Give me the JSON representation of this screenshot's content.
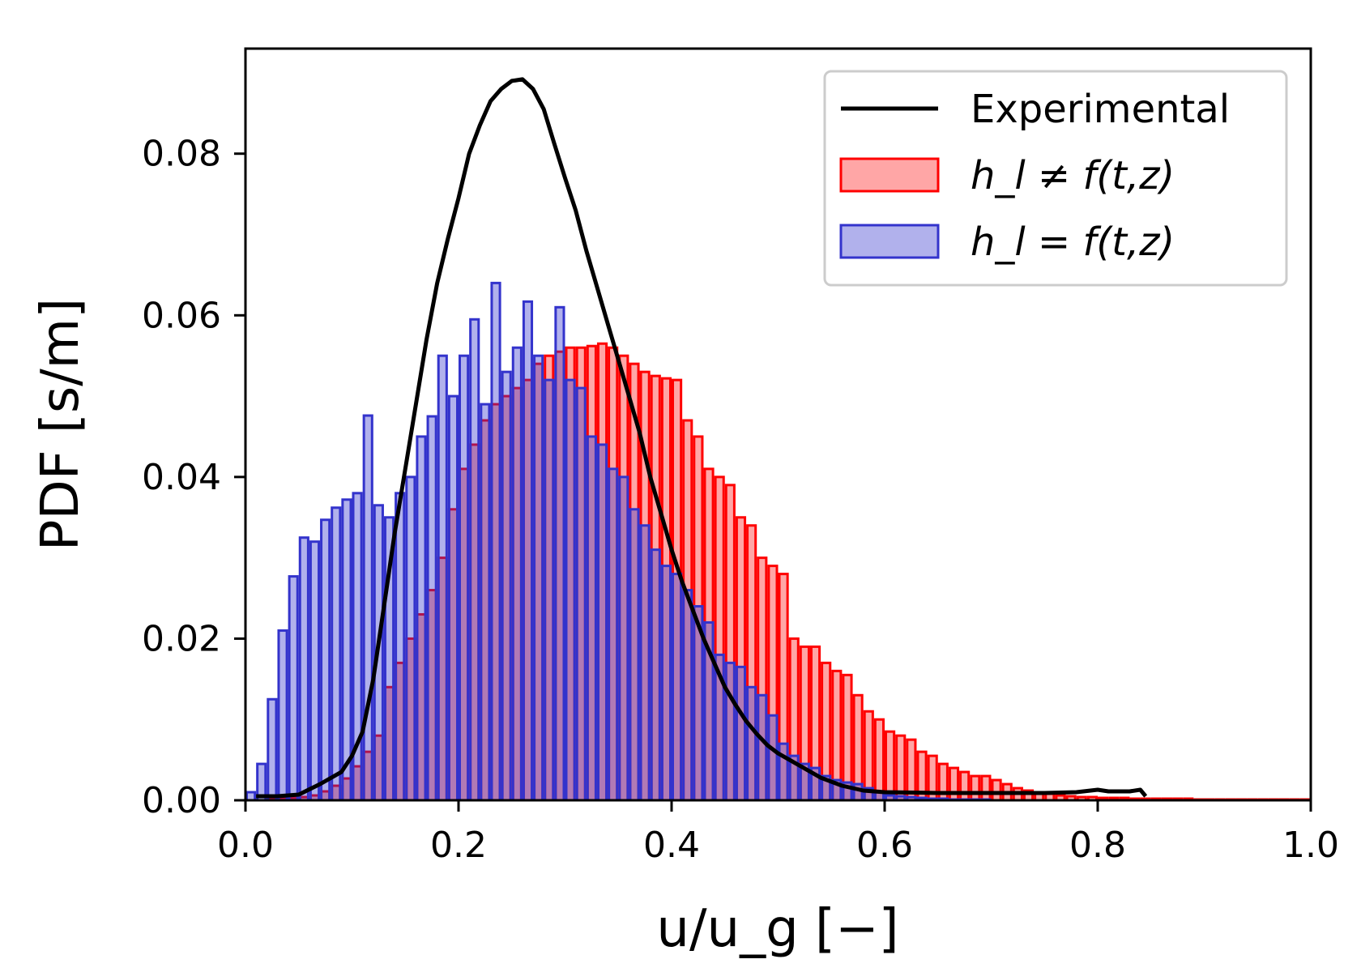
{
  "chart_data": {
    "type": "bar",
    "xlabel": "u/u_g [−]",
    "ylabel": "PDF [s/m]",
    "xlim": [
      0.0,
      1.0
    ],
    "ylim": [
      0.0,
      0.093
    ],
    "xticks": [
      "0.0",
      "0.2",
      "0.4",
      "0.6",
      "0.8",
      "1.0"
    ],
    "yticks": [
      "0.00",
      "0.02",
      "0.04",
      "0.06",
      "0.08"
    ],
    "grid": false,
    "legend_position": "top-right",
    "bin_width": 0.01,
    "series": [
      {
        "name": "h_l ≠ f(t,z)",
        "kind": "histogram",
        "color": "#ff0000",
        "x": [
          0.005,
          0.015,
          0.025,
          0.035,
          0.045,
          0.055,
          0.065,
          0.075,
          0.085,
          0.095,
          0.105,
          0.115,
          0.125,
          0.135,
          0.145,
          0.155,
          0.165,
          0.175,
          0.185,
          0.195,
          0.205,
          0.215,
          0.225,
          0.235,
          0.245,
          0.255,
          0.265,
          0.275,
          0.285,
          0.295,
          0.305,
          0.315,
          0.325,
          0.335,
          0.345,
          0.355,
          0.365,
          0.375,
          0.385,
          0.395,
          0.405,
          0.415,
          0.425,
          0.435,
          0.445,
          0.455,
          0.465,
          0.475,
          0.485,
          0.495,
          0.505,
          0.515,
          0.525,
          0.535,
          0.545,
          0.555,
          0.565,
          0.575,
          0.585,
          0.595,
          0.605,
          0.615,
          0.625,
          0.635,
          0.645,
          0.655,
          0.665,
          0.675,
          0.685,
          0.695,
          0.705,
          0.715,
          0.725,
          0.735,
          0.745,
          0.755,
          0.765,
          0.775,
          0.785,
          0.795,
          0.805,
          0.815,
          0.825,
          0.835,
          0.845,
          0.855,
          0.865,
          0.875,
          0.885,
          0.895,
          0.905,
          0.915,
          0.925,
          0.935,
          0.945,
          0.955,
          0.965,
          0.975,
          0.985,
          0.995
        ],
        "values": [
          0.0,
          0.0,
          0.0001,
          0.0002,
          0.0003,
          0.0004,
          0.0006,
          0.0011,
          0.0018,
          0.0027,
          0.0042,
          0.006,
          0.008,
          0.014,
          0.017,
          0.02,
          0.023,
          0.026,
          0.03,
          0.036,
          0.041,
          0.044,
          0.047,
          0.049,
          0.05,
          0.051,
          0.052,
          0.054,
          0.055,
          0.0555,
          0.056,
          0.056,
          0.0562,
          0.0565,
          0.056,
          0.055,
          0.054,
          0.053,
          0.0525,
          0.0522,
          0.052,
          0.047,
          0.045,
          0.041,
          0.04,
          0.039,
          0.035,
          0.034,
          0.03,
          0.029,
          0.028,
          0.02,
          0.019,
          0.019,
          0.017,
          0.016,
          0.0155,
          0.013,
          0.011,
          0.01,
          0.0085,
          0.008,
          0.0075,
          0.006,
          0.0055,
          0.0045,
          0.004,
          0.0035,
          0.003,
          0.003,
          0.0025,
          0.002,
          0.0015,
          0.0012,
          0.001,
          0.0008,
          0.0006,
          0.0005,
          0.0004,
          0.0004,
          0.0003,
          0.0003,
          0.0003,
          0.0002,
          0.0002,
          0.0002,
          0.0002,
          0.0002,
          0.0002,
          0.0001,
          0.0001,
          0.0001,
          0.0001,
          0.0001,
          0.0001,
          0.0001,
          0.0001,
          0.0001,
          0.0001,
          0.0001
        ]
      },
      {
        "name": "h_l = f(t,z)",
        "kind": "histogram",
        "color": "#3333cc",
        "x": [
          0.005,
          0.015,
          0.025,
          0.035,
          0.045,
          0.055,
          0.065,
          0.075,
          0.085,
          0.095,
          0.105,
          0.115,
          0.125,
          0.135,
          0.145,
          0.155,
          0.165,
          0.175,
          0.185,
          0.195,
          0.205,
          0.215,
          0.225,
          0.235,
          0.245,
          0.255,
          0.265,
          0.275,
          0.285,
          0.295,
          0.305,
          0.315,
          0.325,
          0.335,
          0.345,
          0.355,
          0.365,
          0.375,
          0.385,
          0.395,
          0.405,
          0.415,
          0.425,
          0.435,
          0.445,
          0.455,
          0.465,
          0.475,
          0.485,
          0.495,
          0.505,
          0.515,
          0.525,
          0.535,
          0.545,
          0.555,
          0.565,
          0.575,
          0.585,
          0.595,
          0.605,
          0.615,
          0.625,
          0.635,
          0.645,
          0.655,
          0.665,
          0.675,
          0.685,
          0.695,
          0.705,
          0.715,
          0.725,
          0.735,
          0.745,
          0.755,
          0.765,
          0.775,
          0.785,
          0.795,
          0.805,
          0.815,
          0.825,
          0.835,
          0.845,
          0.855,
          0.865,
          0.875,
          0.885,
          0.895,
          0.905,
          0.915,
          0.925,
          0.935,
          0.945,
          0.955,
          0.965,
          0.975,
          0.985,
          0.995
        ],
        "values": [
          0.001,
          0.0045,
          0.0125,
          0.021,
          0.0277,
          0.0325,
          0.032,
          0.0347,
          0.0362,
          0.0372,
          0.038,
          0.0476,
          0.0365,
          0.035,
          0.038,
          0.04,
          0.045,
          0.0475,
          0.055,
          0.05,
          0.055,
          0.0595,
          0.049,
          0.064,
          0.053,
          0.056,
          0.0617,
          0.055,
          0.052,
          0.061,
          0.052,
          0.051,
          0.045,
          0.044,
          0.041,
          0.04,
          0.036,
          0.034,
          0.031,
          0.029,
          0.028,
          0.026,
          0.024,
          0.022,
          0.018,
          0.017,
          0.0165,
          0.014,
          0.013,
          0.0105,
          0.007,
          0.0055,
          0.0045,
          0.004,
          0.003,
          0.0025,
          0.0022,
          0.002,
          0.0015,
          0.001,
          0.0006,
          0.0005,
          0.0004,
          0.0003,
          0.0002,
          0.0002,
          0.0001,
          0.0001,
          0.0001,
          0.0001,
          0.0,
          0.0,
          0.0,
          0.0,
          0.0,
          0.0,
          0.0,
          0.0,
          0.0,
          0.0,
          0.0,
          0.0,
          0.0,
          0.0,
          0.0,
          0.0,
          0.0,
          0.0,
          0.0,
          0.0,
          0.0,
          0.0,
          0.0,
          0.0,
          0.0,
          0.0,
          0.0,
          0.0,
          0.0,
          0.0
        ]
      },
      {
        "name": "Experimental",
        "kind": "line",
        "color": "#000000",
        "x": [
          0.01,
          0.03,
          0.05,
          0.07,
          0.09,
          0.1,
          0.11,
          0.12,
          0.13,
          0.14,
          0.15,
          0.16,
          0.17,
          0.18,
          0.19,
          0.2,
          0.21,
          0.22,
          0.23,
          0.24,
          0.25,
          0.26,
          0.27,
          0.28,
          0.29,
          0.3,
          0.31,
          0.32,
          0.33,
          0.34,
          0.35,
          0.36,
          0.37,
          0.38,
          0.39,
          0.4,
          0.41,
          0.42,
          0.43,
          0.44,
          0.45,
          0.46,
          0.47,
          0.48,
          0.49,
          0.5,
          0.52,
          0.54,
          0.56,
          0.58,
          0.6,
          0.65,
          0.7,
          0.75,
          0.78,
          0.8,
          0.81,
          0.82,
          0.83,
          0.84,
          0.845
        ],
        "values": [
          0.0005,
          0.0005,
          0.0007,
          0.002,
          0.0035,
          0.0055,
          0.0085,
          0.015,
          0.024,
          0.033,
          0.041,
          0.049,
          0.057,
          0.064,
          0.0695,
          0.0745,
          0.08,
          0.0835,
          0.0865,
          0.088,
          0.089,
          0.0892,
          0.088,
          0.0855,
          0.0812,
          0.077,
          0.073,
          0.068,
          0.0635,
          0.059,
          0.0545,
          0.05,
          0.0455,
          0.04,
          0.0355,
          0.031,
          0.027,
          0.0235,
          0.02,
          0.017,
          0.014,
          0.0118,
          0.0098,
          0.0082,
          0.0068,
          0.0058,
          0.0043,
          0.0028,
          0.0018,
          0.0012,
          0.001,
          0.0009,
          0.0009,
          0.0009,
          0.001,
          0.0013,
          0.0011,
          0.0011,
          0.0011,
          0.0013,
          0.0005
        ]
      }
    ]
  }
}
